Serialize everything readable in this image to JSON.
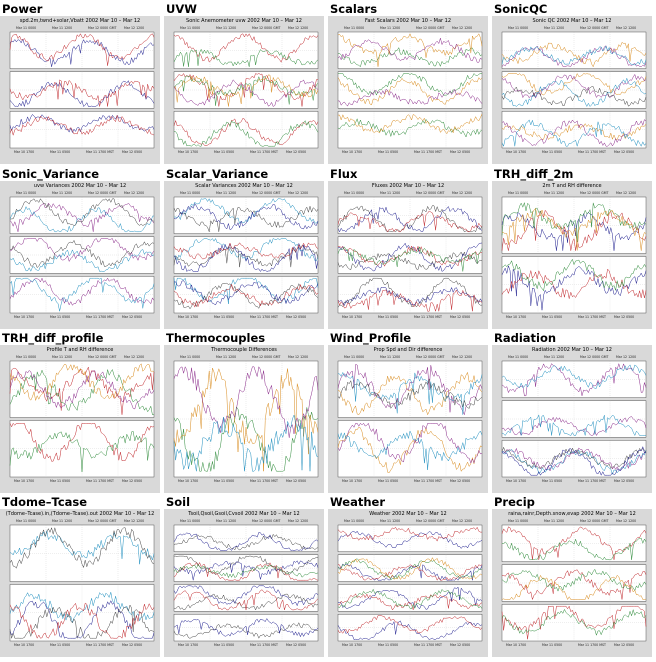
{
  "colors": {
    "panel_bg": "#d9d9d9",
    "plot_bg": "#ffffff",
    "series": [
      "#1f1f8f",
      "#c0262b",
      "#2e8b3a",
      "#d88a1c",
      "#8a2a8a",
      "#1f8fbf",
      "#444444"
    ]
  },
  "cells": [
    {
      "title": "Power",
      "plot_title": "spd.2m,twnd+solar,Vbatt 2002 Mar 10 – Mar 12",
      "top_axis": [
        "Mar 11 0000",
        "Mar 11 1200",
        "Mar 12 0000 GMT",
        "Mar 12 1200"
      ],
      "bottom_axis": [
        "Mar 10 1700",
        "Mar 11 0500",
        "Mar 11 1700 MST",
        "Mar 12 0500"
      ],
      "footer_left": "",
      "footer_center": "",
      "footer_right": "",
      "panels": 3
    },
    {
      "title": "UVW",
      "plot_title": "Sonic Anemometer uvw 2002 Mar 10 – Mar 12",
      "top_axis": [
        "Mar 11 0000",
        "Mar 11 1200",
        "Mar 12 0000 GMT",
        "Mar 12 1200"
      ],
      "bottom_axis": [
        "Mar 10 1700",
        "Mar 11 0500",
        "Mar 11 1700 MST",
        "Mar 12 0500"
      ],
      "footer_left": "",
      "footer_center": "",
      "footer_right": "",
      "panels": 3
    },
    {
      "title": "Scalars",
      "plot_title": "Fast Scalars 2002 Mar 10 – Mar 12",
      "top_axis": [
        "Mar 11 0000",
        "Mar 11 1200",
        "Mar 12 0000 GMT",
        "Mar 12 1200"
      ],
      "bottom_axis": [
        "Mar 10 1700",
        "Mar 11 0500",
        "Mar 11 1700 MST",
        "Mar 12 0500"
      ],
      "footer_left": "",
      "footer_center": "",
      "footer_right": "",
      "panels": 3
    },
    {
      "title": "SonicQC",
      "plot_title": "Sonic QC 2002 Mar 10 – Mar 12",
      "top_axis": [
        "Mar 11 0000",
        "Mar 11 1200",
        "Mar 12 0000 GMT",
        "Mar 12 1200"
      ],
      "bottom_axis": [
        "Mar 10 1700",
        "Mar 11 0500",
        "Mar 11 1700 MST",
        "Mar 12 0500"
      ],
      "footer_left": "",
      "footer_center": "",
      "footer_right": "",
      "panels": 3
    },
    {
      "title": "Sonic_Variance",
      "plot_title": "uvw Variances 2002 Mar 10 – Mar 12",
      "top_axis": [
        "Mar 11 0000",
        "Mar 11 1200",
        "Mar 12 0000 GMT",
        "Mar 12 1200"
      ],
      "bottom_axis": [
        "Mar 10 1700",
        "Mar 11 0500",
        "Mar 11 1700 MST",
        "Mar 12 0500"
      ],
      "footer_left": "",
      "footer_center": "",
      "footer_right": "",
      "panels": 3
    },
    {
      "title": "Scalar_Variance",
      "plot_title": "Scalar Variances 2002 Mar 10 – Mar 12",
      "top_axis": [
        "Mar 11 0000",
        "Mar 11 1200",
        "Mar 12 0000 GMT",
        "Mar 12 1200"
      ],
      "bottom_axis": [
        "Mar 10 1700",
        "Mar 11 0500",
        "Mar 11 1700 MST",
        "Mar 12 0500"
      ],
      "footer_left": "",
      "footer_center": "",
      "footer_right": "",
      "panels": 3
    },
    {
      "title": "Flux",
      "plot_title": "Fluxes 2002 Mar 10 – Mar 12",
      "top_axis": [
        "Mar 11 0000",
        "Mar 11 1200",
        "Mar 12 0000 GMT",
        "Mar 12 1200"
      ],
      "bottom_axis": [
        "Mar 10 1700",
        "Mar 11 0500",
        "Mar 11 1700 MST",
        "Mar 12 0500"
      ],
      "footer_left": "",
      "footer_center": "",
      "footer_right": "",
      "panels": 3
    },
    {
      "title": "TRH_diff_2m",
      "plot_title": "2m T and RH difference",
      "top_axis": [
        "Mar 11 0000",
        "Mar 11 1200",
        "Mar 12 0000 GMT",
        "Mar 12 1200"
      ],
      "bottom_axis": [
        "Mar 10 1700",
        "Mar 11 0500",
        "Mar 11 1700 MST",
        "Mar 12 0500"
      ],
      "footer_left": "",
      "footer_center": "",
      "footer_right": "",
      "panels": 2
    },
    {
      "title": "TRH_diff_profile",
      "plot_title": "Profile T and RH difference",
      "top_axis": [
        "Mar 11 0000",
        "Mar 11 1200",
        "Mar 12 0000 GMT",
        "Mar 12 1200"
      ],
      "bottom_axis": [
        "Mar 10 1700",
        "Mar 11 0500",
        "Mar 11 1700 MST",
        "Mar 12 0500"
      ],
      "footer_left": "",
      "footer_center": "",
      "footer_right": "",
      "panels": 2
    },
    {
      "title": "Thermocouples",
      "plot_title": "Thermocouple Differences",
      "top_axis": [
        "Mar 11 0000",
        "Mar 11 1200",
        "Mar 12 0000 GMT",
        "Mar 12 1200"
      ],
      "bottom_axis": [
        "Mar 10 1700",
        "Mar 11 0500",
        "Mar 11 1700 MST",
        "Mar 12 0500"
      ],
      "footer_left": "",
      "footer_center": "",
      "footer_right": "",
      "panels": 1
    },
    {
      "title": "Wind_Profile",
      "plot_title": "Prop Spd and Dir difference",
      "top_axis": [
        "Mar 11 0000",
        "Mar 11 1200",
        "Mar 12 0000 GMT",
        "Mar 12 1200"
      ],
      "bottom_axis": [
        "Mar 10 1700",
        "Mar 11 0500",
        "Mar 11 1700 MST",
        "Mar 12 0500"
      ],
      "footer_left": "",
      "footer_center": "",
      "footer_right": "",
      "panels": 2
    },
    {
      "title": "Radiation",
      "plot_title": "Radiation 2002 Mar 10 – Mar 12",
      "top_axis": [
        "Mar 11 0000",
        "Mar 11 1200",
        "Mar 12 0000 GMT",
        "Mar 12 1200"
      ],
      "bottom_axis": [
        "Mar 10 1700",
        "Mar 11 0500",
        "Mar 11 1700 MST",
        "Mar 12 0500"
      ],
      "footer_left": "",
      "footer_center": "",
      "footer_right": "",
      "panels": 3
    },
    {
      "title": "Tdome–Tcase",
      "plot_title": "(Tdome–Tcase).in,(Tdome–Tcase).out 2002 Mar 10 – Mar 12",
      "top_axis": [
        "Mar 11 0000",
        "Mar 11 1200",
        "Mar 12 0000 GMT",
        "Mar 12 1200"
      ],
      "bottom_axis": [
        "Mar 10 1700",
        "Mar 11 0500",
        "Mar 11 1700 MST",
        "Mar 12 0500"
      ],
      "footer_left": "",
      "footer_center": "",
      "footer_right": "",
      "panels": 2
    },
    {
      "title": "Soil",
      "plot_title": "Tsoil,Qsoil,Gsoil,Cvsoil 2002 Mar 10 – Mar 12",
      "top_axis": [
        "Mar 11 0000",
        "Mar 11 1200",
        "Mar 12 0000 GMT",
        "Mar 12 1200"
      ],
      "bottom_axis": [
        "Mar 10 1700",
        "Mar 11 0500",
        "Mar 11 1700 MST",
        "Mar 12 0500"
      ],
      "footer_left": "",
      "footer_center": "",
      "footer_right": "",
      "panels": 4
    },
    {
      "title": "Weather",
      "plot_title": "Weather 2002 Mar 10 – Mar 12",
      "top_axis": [
        "Mar 11 0000",
        "Mar 11 1200",
        "Mar 12 0000 GMT",
        "Mar 12 1200"
      ],
      "bottom_axis": [
        "Mar 10 1700",
        "Mar 11 0500",
        "Mar 11 1700 MST",
        "Mar 12 0500"
      ],
      "footer_left": "",
      "footer_center": "",
      "footer_right": "",
      "panels": 4
    },
    {
      "title": "Precip",
      "plot_title": "raina,rainr,Depth.snow,evap 2002 Mar 10 – Mar 12",
      "top_axis": [
        "Mar 11 0000",
        "Mar 11 1200",
        "Mar 12 0000 GMT",
        "Mar 12 1200"
      ],
      "bottom_axis": [
        "Mar 10 1700",
        "Mar 11 0500",
        "Mar 11 1700 MST",
        "Mar 12 0500"
      ],
      "footer_left": "",
      "footer_center": "",
      "footer_right": "",
      "panels": 3
    }
  ]
}
